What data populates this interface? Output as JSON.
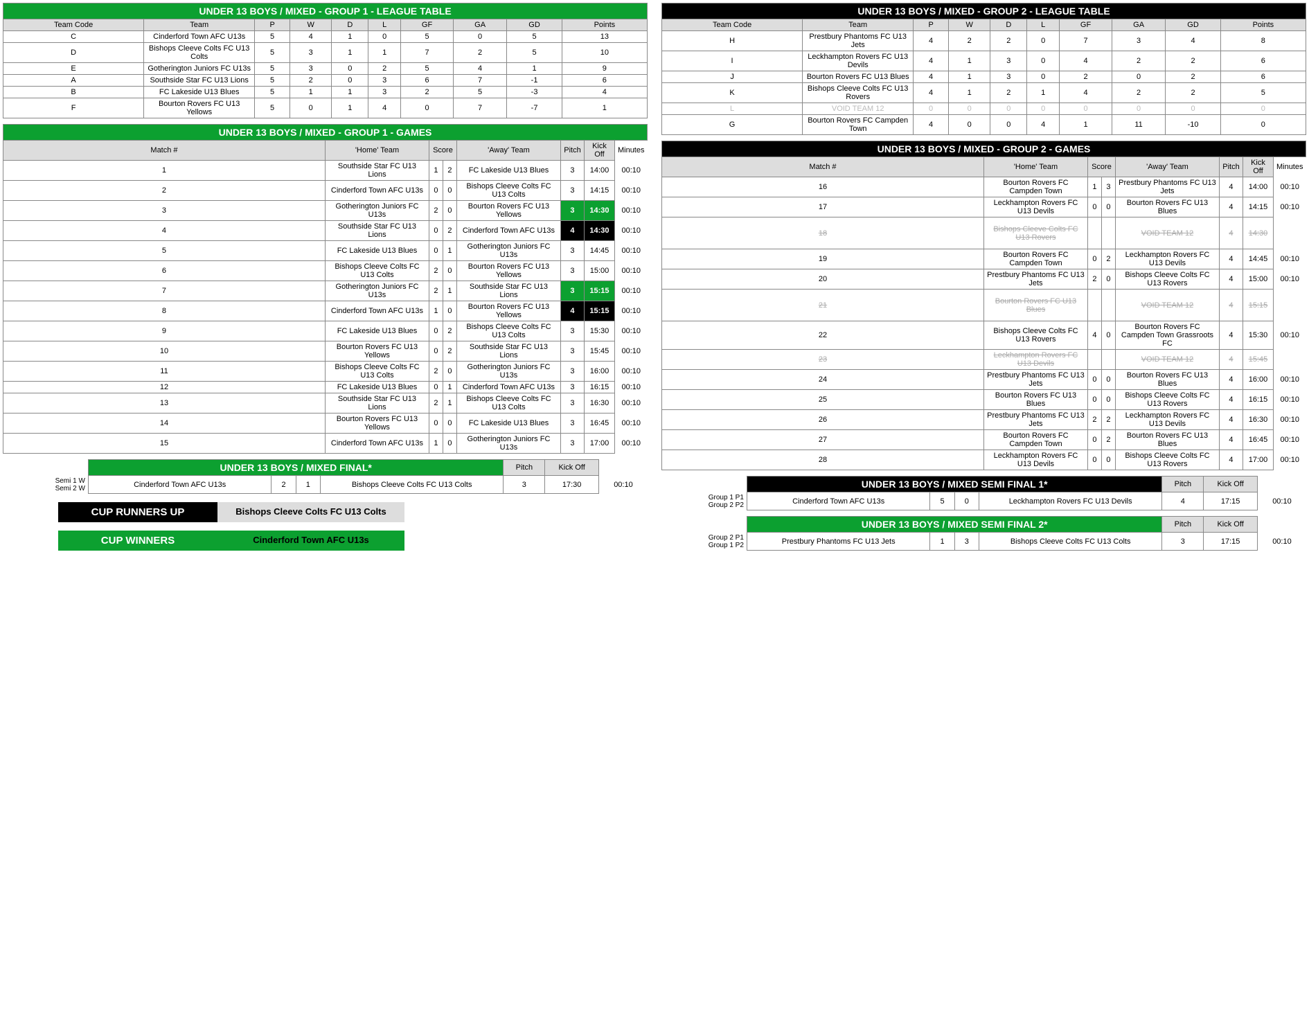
{
  "colors": {
    "green": "#0ca030",
    "black": "#000000",
    "gray": "#dddddd",
    "void": "#aaaaaa"
  },
  "league1": {
    "title": "UNDER 13 BOYS / MIXED - GROUP 1 - LEAGUE TABLE",
    "headers": [
      "Team Code",
      "Team",
      "P",
      "W",
      "D",
      "L",
      "GF",
      "GA",
      "GD",
      "Points"
    ],
    "rows": [
      [
        "C",
        "Cinderford Town AFC U13s",
        "5",
        "4",
        "1",
        "0",
        "5",
        "0",
        "5",
        "13"
      ],
      [
        "D",
        "Bishops Cleeve Colts FC U13 Colts",
        "5",
        "3",
        "1",
        "1",
        "7",
        "2",
        "5",
        "10"
      ],
      [
        "E",
        "Gotherington Juniors FC U13s",
        "5",
        "3",
        "0",
        "2",
        "5",
        "4",
        "1",
        "9"
      ],
      [
        "A",
        "Southside Star FC U13 Lions",
        "5",
        "2",
        "0",
        "3",
        "6",
        "7",
        "-1",
        "6"
      ],
      [
        "B",
        "FC Lakeside U13 Blues",
        "5",
        "1",
        "1",
        "3",
        "2",
        "5",
        "-3",
        "4"
      ],
      [
        "F",
        "Bourton Rovers FC U13 Yellows",
        "5",
        "0",
        "1",
        "4",
        "0",
        "7",
        "-7",
        "1"
      ]
    ]
  },
  "league2": {
    "title": "UNDER 13 BOYS / MIXED - GROUP 2 - LEAGUE TABLE",
    "headers": [
      "Team Code",
      "Team",
      "P",
      "W",
      "D",
      "L",
      "GF",
      "GA",
      "GD",
      "Points"
    ],
    "rows": [
      [
        "H",
        "Prestbury Phantoms FC U13 Jets",
        "4",
        "2",
        "2",
        "0",
        "7",
        "3",
        "4",
        "8"
      ],
      [
        "I",
        "Leckhampton Rovers FC U13 Devils",
        "4",
        "1",
        "3",
        "0",
        "4",
        "2",
        "2",
        "6"
      ],
      [
        "J",
        "Bourton Rovers FC U13 Blues",
        "4",
        "1",
        "3",
        "0",
        "2",
        "0",
        "2",
        "6"
      ],
      [
        "K",
        "Bishops Cleeve Colts FC U13 Rovers",
        "4",
        "1",
        "2",
        "1",
        "4",
        "2",
        "2",
        "5"
      ],
      [
        "L",
        "VOID TEAM 12",
        "0",
        "0",
        "0",
        "0",
        "0",
        "0",
        "0",
        "0"
      ],
      [
        "G",
        "Bourton Rovers FC Campden Town",
        "4",
        "0",
        "0",
        "4",
        "1",
        "11",
        "-10",
        "0"
      ]
    ],
    "void_row": 4
  },
  "games1": {
    "title": "UNDER 13 BOYS / MIXED - GROUP 1 - GAMES",
    "headers": [
      "Match #",
      "'Home' Team",
      "Score",
      "'Away' Team",
      "Pitch",
      "Kick Off",
      "Minutes"
    ],
    "rows": [
      {
        "n": "1",
        "h": "Southside Star FC U13 Lions",
        "hs": "1",
        "as": "2",
        "a": "FC Lakeside U13 Blues",
        "p": "3",
        "k": "14:00",
        "m": "00:10"
      },
      {
        "n": "2",
        "h": "Cinderford Town AFC U13s",
        "hs": "0",
        "as": "0",
        "a": "Bishops Cleeve Colts FC U13 Colts",
        "p": "3",
        "k": "14:15",
        "m": "00:10"
      },
      {
        "n": "3",
        "h": "Gotherington Juniors FC U13s",
        "hs": "2",
        "as": "0",
        "a": "Bourton Rovers FC U13 Yellows",
        "p": "3",
        "k": "14:30",
        "m": "00:10",
        "hl": "green"
      },
      {
        "n": "4",
        "h": "Southside Star FC U13 Lions",
        "hs": "0",
        "as": "2",
        "a": "Cinderford Town AFC U13s",
        "p": "4",
        "k": "14:30",
        "m": "00:10",
        "hl": "black"
      },
      {
        "n": "5",
        "h": "FC Lakeside U13 Blues",
        "hs": "0",
        "as": "1",
        "a": "Gotherington Juniors FC U13s",
        "p": "3",
        "k": "14:45",
        "m": "00:10"
      },
      {
        "n": "6",
        "h": "Bishops Cleeve Colts FC U13 Colts",
        "hs": "2",
        "as": "0",
        "a": "Bourton Rovers FC U13 Yellows",
        "p": "3",
        "k": "15:00",
        "m": "00:10"
      },
      {
        "n": "7",
        "h": "Gotherington Juniors FC U13s",
        "hs": "2",
        "as": "1",
        "a": "Southside Star FC U13 Lions",
        "p": "3",
        "k": "15:15",
        "m": "00:10",
        "hl": "green"
      },
      {
        "n": "8",
        "h": "Cinderford Town AFC U13s",
        "hs": "1",
        "as": "0",
        "a": "Bourton Rovers FC U13 Yellows",
        "p": "4",
        "k": "15:15",
        "m": "00:10",
        "hl": "black"
      },
      {
        "n": "9",
        "h": "FC Lakeside U13 Blues",
        "hs": "0",
        "as": "2",
        "a": "Bishops Cleeve Colts FC U13 Colts",
        "p": "3",
        "k": "15:30",
        "m": "00:10"
      },
      {
        "n": "10",
        "h": "Bourton Rovers FC U13 Yellows",
        "hs": "0",
        "as": "2",
        "a": "Southside Star FC U13 Lions",
        "p": "3",
        "k": "15:45",
        "m": "00:10"
      },
      {
        "n": "11",
        "h": "Bishops Cleeve Colts FC U13 Colts",
        "hs": "2",
        "as": "0",
        "a": "Gotherington Juniors FC U13s",
        "p": "3",
        "k": "16:00",
        "m": "00:10"
      },
      {
        "n": "12",
        "h": "FC Lakeside U13 Blues",
        "hs": "0",
        "as": "1",
        "a": "Cinderford Town AFC U13s",
        "p": "3",
        "k": "16:15",
        "m": "00:10"
      },
      {
        "n": "13",
        "h": "Southside Star FC U13 Lions",
        "hs": "2",
        "as": "1",
        "a": "Bishops Cleeve Colts FC U13 Colts",
        "p": "3",
        "k": "16:30",
        "m": "00:10"
      },
      {
        "n": "14",
        "h": "Bourton Rovers FC U13 Yellows",
        "hs": "0",
        "as": "0",
        "a": "FC Lakeside U13 Blues",
        "p": "3",
        "k": "16:45",
        "m": "00:10"
      },
      {
        "n": "15",
        "h": "Cinderford Town AFC U13s",
        "hs": "1",
        "as": "0",
        "a": "Gotherington Juniors FC U13s",
        "p": "3",
        "k": "17:00",
        "m": "00:10"
      }
    ]
  },
  "games2": {
    "title": "UNDER 13 BOYS / MIXED - GROUP 2 - GAMES",
    "headers": [
      "Match #",
      "'Home' Team",
      "Score",
      "'Away' Team",
      "Pitch",
      "Kick Off",
      "Minutes"
    ],
    "rows": [
      {
        "n": "16",
        "h": "Bourton Rovers FC Campden Town",
        "hs": "1",
        "as": "3",
        "a": "Prestbury Phantoms FC U13 Jets",
        "p": "4",
        "k": "14:00",
        "m": "00:10"
      },
      {
        "n": "17",
        "h": "Leckhampton Rovers FC U13 Devils",
        "hs": "0",
        "as": "0",
        "a": "Bourton Rovers FC U13 Blues",
        "p": "4",
        "k": "14:15",
        "m": "00:10"
      },
      {
        "n": "18",
        "h": "Bishops Cleeve Colts FC U13 Rovers",
        "hs": "",
        "as": "",
        "a": "VOID TEAM 12",
        "p": "4",
        "k": "14:30",
        "m": "",
        "void": true,
        "tall": true
      },
      {
        "n": "19",
        "h": "Bourton Rovers FC Campden Town",
        "hs": "0",
        "as": "2",
        "a": "Leckhampton Rovers FC U13 Devils",
        "p": "4",
        "k": "14:45",
        "m": "00:10"
      },
      {
        "n": "20",
        "h": "Prestbury Phantoms FC U13 Jets",
        "hs": "2",
        "as": "0",
        "a": "Bishops Cleeve Colts FC U13 Rovers",
        "p": "4",
        "k": "15:00",
        "m": "00:10"
      },
      {
        "n": "21",
        "h": "Bourton Rovers FC U13 Blues",
        "hs": "",
        "as": "",
        "a": "VOID TEAM 12",
        "p": "4",
        "k": "15:15",
        "m": "",
        "void": true,
        "tall": true
      },
      {
        "n": "22",
        "h": "Bishops Cleeve Colts FC U13 Rovers",
        "hs": "4",
        "as": "0",
        "a": "Bourton Rovers FC Campden Town Grassroots FC",
        "p": "4",
        "k": "15:30",
        "m": "00:10"
      },
      {
        "n": "23",
        "h": "Leckhampton Rovers FC U13 Devils",
        "hs": "",
        "as": "",
        "a": "VOID TEAM 12",
        "p": "4",
        "k": "15:45",
        "m": "",
        "void": true
      },
      {
        "n": "24",
        "h": "Prestbury Phantoms FC U13 Jets",
        "hs": "0",
        "as": "0",
        "a": "Bourton Rovers FC U13 Blues",
        "p": "4",
        "k": "16:00",
        "m": "00:10"
      },
      {
        "n": "25",
        "h": "Bourton Rovers FC U13 Blues",
        "hs": "0",
        "as": "0",
        "a": "Bishops Cleeve Colts FC U13 Rovers",
        "p": "4",
        "k": "16:15",
        "m": "00:10"
      },
      {
        "n": "26",
        "h": "Prestbury Phantoms FC U13 Jets",
        "hs": "2",
        "as": "2",
        "a": "Leckhampton Rovers FC U13 Devils",
        "p": "4",
        "k": "16:30",
        "m": "00:10"
      },
      {
        "n": "27",
        "h": "Bourton Rovers FC Campden Town",
        "hs": "0",
        "as": "2",
        "a": "Bourton Rovers FC U13 Blues",
        "p": "4",
        "k": "16:45",
        "m": "00:10"
      },
      {
        "n": "28",
        "h": "Leckhampton Rovers FC U13 Devils",
        "hs": "0",
        "as": "0",
        "a": "Bishops Cleeve Colts FC U13 Rovers",
        "p": "4",
        "k": "17:00",
        "m": "00:10"
      }
    ]
  },
  "final": {
    "title": "UNDER 13 BOYS / MIXED FINAL*",
    "pitch_hdr": "Pitch",
    "kick_hdr": "Kick Off",
    "prefix": [
      "Semi 1 W",
      "Semi 2 W"
    ],
    "h": "Cinderford Town AFC U13s",
    "hs": "2",
    "as": "1",
    "a": "Bishops Cleeve Colts FC U13 Colts",
    "p": "3",
    "k": "17:30",
    "m": "00:10"
  },
  "semi1": {
    "title": "UNDER 13 BOYS / MIXED SEMI FINAL 1*",
    "pitch_hdr": "Pitch",
    "kick_hdr": "Kick Off",
    "prefix": [
      "Group 1 P1",
      "Group 2 P2"
    ],
    "h": "Cinderford Town AFC U13s",
    "hs": "5",
    "as": "0",
    "a": "Leckhampton Rovers FC U13 Devils",
    "p": "4",
    "k": "17:15",
    "m": "00:10"
  },
  "semi2": {
    "title": "UNDER 13 BOYS / MIXED SEMI FINAL 2*",
    "pitch_hdr": "Pitch",
    "kick_hdr": "Kick Off",
    "prefix": [
      "Group 2 P1",
      "Group 1 P2"
    ],
    "h": "Prestbury Phantoms FC U13 Jets",
    "hs": "1",
    "as": "3",
    "a": "Bishops Cleeve Colts FC U13 Colts",
    "p": "3",
    "k": "17:15",
    "m": "00:10"
  },
  "runners_up": {
    "label": "CUP RUNNERS UP",
    "value": "Bishops Cleeve Colts FC U13 Colts"
  },
  "winners": {
    "label": "CUP WINNERS",
    "value": "Cinderford Town AFC U13s"
  }
}
